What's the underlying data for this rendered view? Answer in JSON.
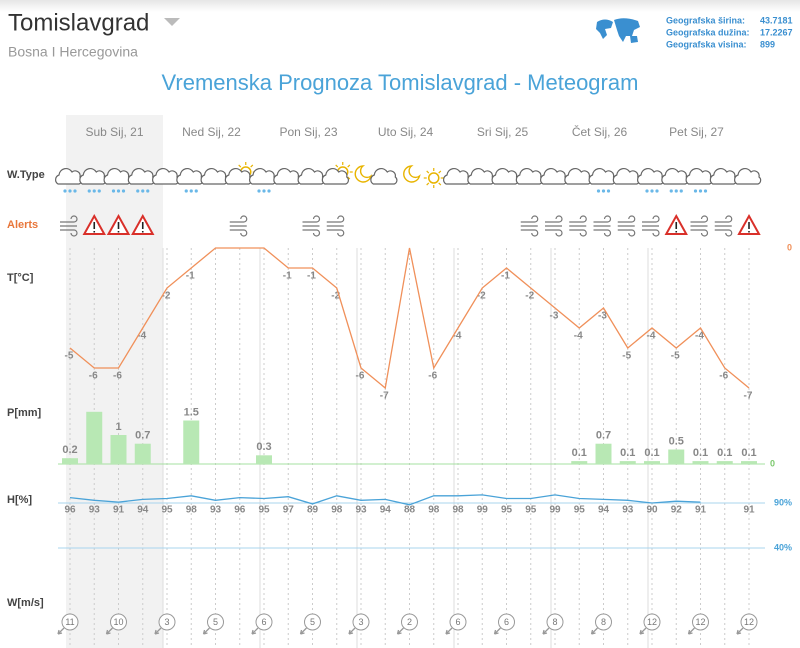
{
  "header": {
    "city": "Tomislavgrad",
    "country": "Bosna I Hercegovina",
    "title": "Vremenska Prognoza Tomislavgrad - Meteogram",
    "geo": [
      {
        "label": "Geografska širina:",
        "value": "43.7181"
      },
      {
        "label": "Geografska dužina:",
        "value": "17.2267"
      },
      {
        "label": "Geografska visina:",
        "value": "899"
      }
    ]
  },
  "meteogram": {
    "days": [
      "Sub Sij, 21",
      "Ned Sij, 22",
      "Pon Sij, 23",
      "Uto Sij, 24",
      "Sri Sij, 25",
      "Čet Sij, 26",
      "Pet Sij, 27"
    ],
    "row_labels": {
      "weather": "W.Type",
      "alerts": "Alerts",
      "temperature": "T[°C]",
      "precipitation": "P[mm]",
      "humidity": "H[%]",
      "wind": "W[m/s]"
    }
  },
  "chart_data": [
    {
      "type": "line",
      "name": "temperature",
      "color": "#f0905a",
      "values": [
        -5,
        -6,
        -6,
        -4,
        -2,
        -1,
        0,
        0,
        0,
        -1,
        -1,
        -2,
        -6,
        -7,
        0,
        -6,
        -4,
        -2,
        -1,
        -2,
        -3,
        -4,
        -3,
        -5,
        -4,
        -5,
        -4,
        -6,
        -7
      ],
      "ylim": [
        -7.5,
        0
      ],
      "yticks": [
        0
      ]
    },
    {
      "type": "bar",
      "name": "precipitation",
      "color": "#b8e8b4",
      "values": [
        0.2,
        1.8,
        1,
        0.7,
        null,
        1.5,
        null,
        null,
        0.3,
        null,
        null,
        null,
        null,
        null,
        null,
        null,
        null,
        null,
        null,
        null,
        null,
        0.1,
        0.7,
        0.1,
        0.1,
        0.5,
        0.1,
        0.1,
        0.1
      ],
      "ylim": [
        0,
        2
      ],
      "yticks": [
        0
      ]
    },
    {
      "type": "line",
      "name": "humidity",
      "color": "#4aa3d8",
      "values": [
        96,
        93,
        91,
        94,
        95,
        98,
        93,
        96,
        95,
        97,
        89,
        98,
        93,
        94,
        88,
        98,
        98,
        99,
        95,
        95,
        99,
        95,
        94,
        93,
        90,
        92,
        91,
        null,
        91
      ],
      "ylim": [
        0,
        100
      ],
      "yticks": [
        {
          "value": 90,
          "label": "90%"
        },
        {
          "value": 40,
          "label": "40%"
        }
      ]
    },
    {
      "type": "wind",
      "name": "wind",
      "values": [
        11,
        null,
        10,
        null,
        3,
        null,
        5,
        null,
        6,
        null,
        5,
        null,
        3,
        null,
        2,
        null,
        6,
        null,
        6,
        null,
        8,
        null,
        8,
        null,
        12,
        null,
        12,
        null,
        12
      ]
    }
  ]
}
